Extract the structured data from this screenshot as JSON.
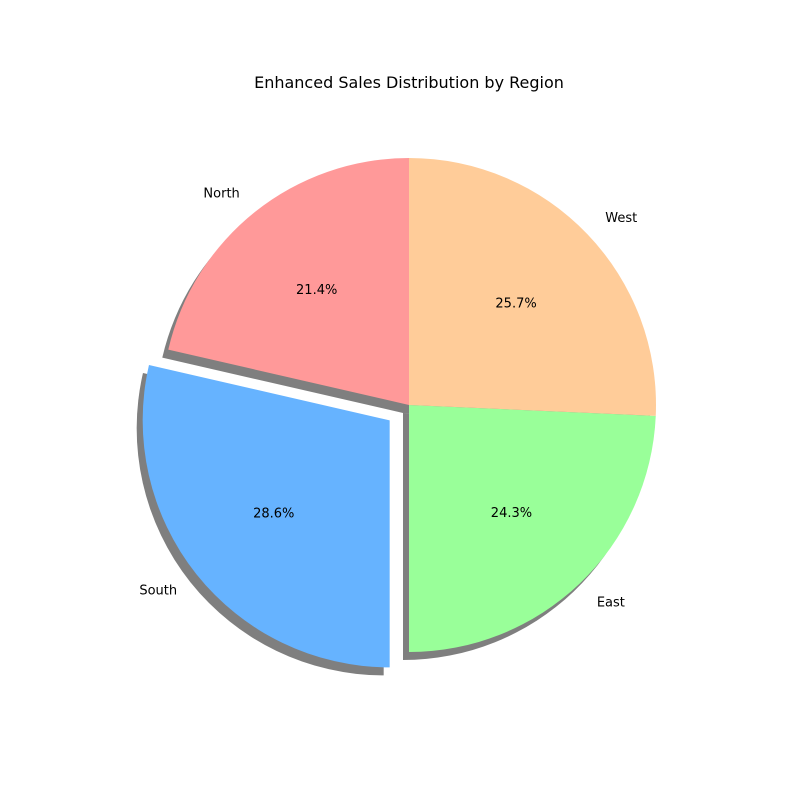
{
  "chart_data": {
    "type": "pie",
    "title": "Enhanced Sales Distribution by Region",
    "slices": [
      {
        "label": "North",
        "value": 21.4,
        "pct_label": "21.4%",
        "color": "#ff9999",
        "explode": 0
      },
      {
        "label": "South",
        "value": 28.6,
        "pct_label": "28.6%",
        "color": "#66b3ff",
        "explode": 0.1
      },
      {
        "label": "East",
        "value": 24.3,
        "pct_label": "24.3%",
        "color": "#99ff99",
        "explode": 0
      },
      {
        "label": "West",
        "value": 25.7,
        "pct_label": "25.7%",
        "color": "#ffcc99",
        "explode": 0
      }
    ],
    "start_angle_deg": 90,
    "direction": "counterclockwise",
    "shadow": true
  }
}
